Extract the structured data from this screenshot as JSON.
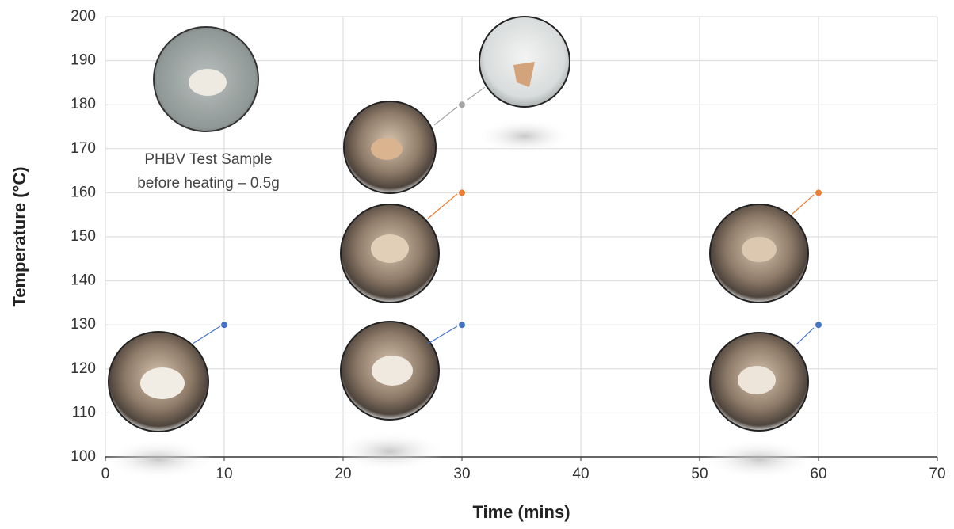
{
  "chart_data": {
    "type": "scatter",
    "xlabel": "Time (mins)",
    "ylabel": "Temperature (°C)",
    "annotation_lines": [
      "PHBV Test Sample",
      "before heating – 0.5g"
    ],
    "series": [
      {
        "color": "#4472c4",
        "x": [
          10,
          30,
          60
        ],
        "values": [
          130,
          130,
          130
        ]
      },
      {
        "color": "#ed7d31",
        "x": [
          30,
          60
        ],
        "values": [
          160,
          160
        ]
      },
      {
        "color": "#a5a5a5",
        "x": [
          30
        ],
        "values": [
          180
        ]
      }
    ],
    "xlim": [
      0,
      70
    ],
    "xticks": [
      0,
      10,
      20,
      30,
      40,
      50,
      60,
      70
    ],
    "ylim": [
      100,
      200
    ],
    "yticks": [
      100,
      110,
      120,
      130,
      140,
      150,
      160,
      170,
      180,
      190,
      200
    ],
    "grid": true
  }
}
